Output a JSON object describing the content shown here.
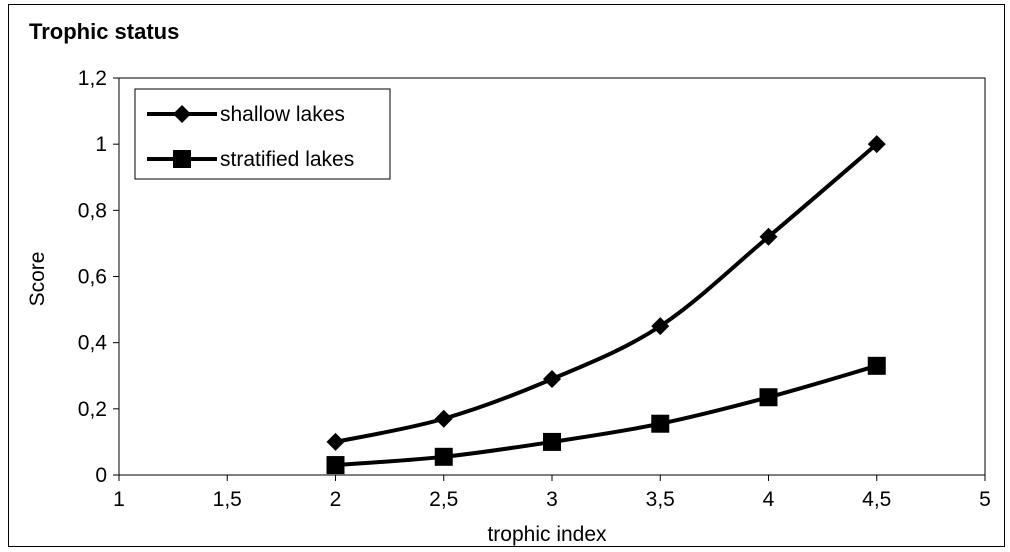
{
  "chart_data": {
    "type": "line",
    "title": "Trophic status",
    "xlabel": "trophic index",
    "ylabel": "Score",
    "xlim": [
      1,
      5
    ],
    "ylim": [
      0,
      1.2
    ],
    "x_ticks": [
      "1",
      "1,5",
      "2",
      "2,5",
      "3",
      "3,5",
      "4",
      "4,5",
      "5"
    ],
    "y_ticks": [
      "0",
      "0,2",
      "0,4",
      "0,6",
      "0,8",
      "1",
      "1,2"
    ],
    "grid": false,
    "legend": "top-left",
    "x": [
      2,
      2.5,
      3,
      3.5,
      4,
      4.5
    ],
    "series": [
      {
        "name": "shallow lakes",
        "marker": "diamond",
        "values": [
          0.1,
          0.17,
          0.29,
          0.45,
          0.72,
          1.0
        ]
      },
      {
        "name": "stratified lakes",
        "marker": "square",
        "values": [
          0.03,
          0.055,
          0.1,
          0.155,
          0.235,
          0.33
        ]
      }
    ]
  }
}
